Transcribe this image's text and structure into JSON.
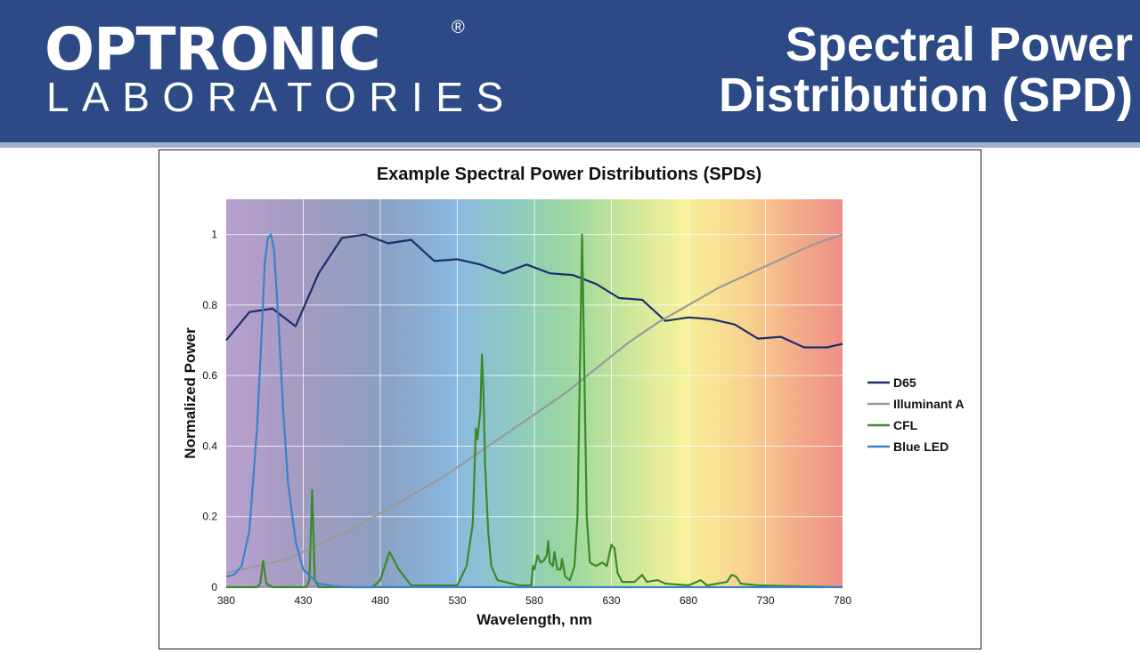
{
  "header": {
    "logo_main": "OPTRONIC",
    "logo_reg": "®",
    "logo_sub": "LABORATORIES",
    "title_line1": "Spectral Power",
    "title_line2": "Distribution (SPD)",
    "background_color": "#2d4a86"
  },
  "chart_data": {
    "type": "line",
    "title": "Example Spectral Power Distributions (SPDs)",
    "xlabel": "Wavelength, nm",
    "ylabel": "Normalized Power",
    "xlim": [
      380,
      780
    ],
    "ylim": [
      0,
      1.1
    ],
    "x_ticks": [
      380,
      430,
      480,
      530,
      580,
      630,
      680,
      730,
      780
    ],
    "y_ticks": [
      0,
      0.2,
      0.4,
      0.6,
      0.8,
      1
    ],
    "y_tick_labels": [
      "0",
      "0.2",
      "0.4",
      "0.6",
      "0.8",
      "1"
    ],
    "grid": true,
    "background": "visible-spectrum gradient",
    "legend_position": "right",
    "series": [
      {
        "name": "D65",
        "color": "#1b2f6b",
        "points": [
          [
            380,
            0.7
          ],
          [
            395,
            0.78
          ],
          [
            410,
            0.79
          ],
          [
            425,
            0.74
          ],
          [
            440,
            0.89
          ],
          [
            455,
            0.99
          ],
          [
            470,
            1.0
          ],
          [
            485,
            0.975
          ],
          [
            500,
            0.985
          ],
          [
            515,
            0.925
          ],
          [
            530,
            0.93
          ],
          [
            545,
            0.915
          ],
          [
            560,
            0.89
          ],
          [
            575,
            0.915
          ],
          [
            590,
            0.89
          ],
          [
            605,
            0.885
          ],
          [
            620,
            0.86
          ],
          [
            635,
            0.82
          ],
          [
            650,
            0.815
          ],
          [
            665,
            0.755
          ],
          [
            680,
            0.765
          ],
          [
            695,
            0.76
          ],
          [
            710,
            0.745
          ],
          [
            725,
            0.705
          ],
          [
            740,
            0.71
          ],
          [
            755,
            0.68
          ],
          [
            770,
            0.68
          ],
          [
            780,
            0.69
          ]
        ]
      },
      {
        "name": "Illuminant A",
        "color": "#9a9a9a",
        "points": [
          [
            380,
            0.04
          ],
          [
            400,
            0.06
          ],
          [
            420,
            0.08
          ],
          [
            440,
            0.12
          ],
          [
            460,
            0.16
          ],
          [
            480,
            0.21
          ],
          [
            500,
            0.26
          ],
          [
            520,
            0.31
          ],
          [
            540,
            0.37
          ],
          [
            560,
            0.43
          ],
          [
            580,
            0.49
          ],
          [
            600,
            0.55
          ],
          [
            620,
            0.62
          ],
          [
            640,
            0.69
          ],
          [
            660,
            0.75
          ],
          [
            680,
            0.8
          ],
          [
            700,
            0.85
          ],
          [
            720,
            0.89
          ],
          [
            740,
            0.93
          ],
          [
            760,
            0.97
          ],
          [
            780,
            1.0
          ]
        ]
      },
      {
        "name": "CFL",
        "color": "#3a8a2a",
        "points": [
          [
            380,
            0
          ],
          [
            400,
            0
          ],
          [
            402,
            0.01
          ],
          [
            404,
            0.075
          ],
          [
            406,
            0.01
          ],
          [
            410,
            0
          ],
          [
            432,
            0
          ],
          [
            434,
            0.02
          ],
          [
            435.8,
            0.275
          ],
          [
            437.5,
            0.02
          ],
          [
            440,
            0
          ],
          [
            475,
            0
          ],
          [
            480,
            0.02
          ],
          [
            486,
            0.1
          ],
          [
            492,
            0.05
          ],
          [
            500,
            0.005
          ],
          [
            530,
            0.005
          ],
          [
            536,
            0.06
          ],
          [
            540,
            0.18
          ],
          [
            542,
            0.45
          ],
          [
            543,
            0.42
          ],
          [
            544,
            0.46
          ],
          [
            545,
            0.5
          ],
          [
            546,
            0.66
          ],
          [
            547,
            0.55
          ],
          [
            548,
            0.35
          ],
          [
            550,
            0.16
          ],
          [
            552,
            0.06
          ],
          [
            556,
            0.02
          ],
          [
            570,
            0.005
          ],
          [
            578,
            0.005
          ],
          [
            579,
            0.06
          ],
          [
            580,
            0.05
          ],
          [
            582,
            0.09
          ],
          [
            584,
            0.07
          ],
          [
            586,
            0.075
          ],
          [
            588,
            0.09
          ],
          [
            589,
            0.13
          ],
          [
            590,
            0.07
          ],
          [
            592,
            0.06
          ],
          [
            593,
            0.1
          ],
          [
            595,
            0.05
          ],
          [
            597,
            0.05
          ],
          [
            598,
            0.08
          ],
          [
            600,
            0.03
          ],
          [
            603,
            0.02
          ],
          [
            606,
            0.06
          ],
          [
            608,
            0.2
          ],
          [
            609.5,
            0.6
          ],
          [
            611,
            1.0
          ],
          [
            612.5,
            0.6
          ],
          [
            614,
            0.2
          ],
          [
            616,
            0.07
          ],
          [
            620,
            0.06
          ],
          [
            624,
            0.07
          ],
          [
            627,
            0.06
          ],
          [
            630,
            0.12
          ],
          [
            632,
            0.11
          ],
          [
            634,
            0.04
          ],
          [
            637,
            0.015
          ],
          [
            645,
            0.015
          ],
          [
            650,
            0.035
          ],
          [
            653,
            0.015
          ],
          [
            660,
            0.02
          ],
          [
            665,
            0.01
          ],
          [
            680,
            0.005
          ],
          [
            688,
            0.02
          ],
          [
            692,
            0.005
          ],
          [
            705,
            0.015
          ],
          [
            708,
            0.035
          ],
          [
            711,
            0.03
          ],
          [
            714,
            0.01
          ],
          [
            725,
            0.005
          ],
          [
            780,
            0
          ]
        ]
      },
      {
        "name": "Blue LED",
        "color": "#3b82c8",
        "points": [
          [
            380,
            0.03
          ],
          [
            385,
            0.035
          ],
          [
            390,
            0.06
          ],
          [
            395,
            0.16
          ],
          [
            400,
            0.45
          ],
          [
            403,
            0.72
          ],
          [
            405,
            0.92
          ],
          [
            407,
            0.99
          ],
          [
            409,
            1.0
          ],
          [
            411,
            0.96
          ],
          [
            414,
            0.75
          ],
          [
            417,
            0.5
          ],
          [
            420,
            0.3
          ],
          [
            425,
            0.13
          ],
          [
            430,
            0.05
          ],
          [
            440,
            0.01
          ],
          [
            450,
            0.003
          ],
          [
            460,
            0
          ],
          [
            780,
            0
          ]
        ]
      }
    ]
  }
}
